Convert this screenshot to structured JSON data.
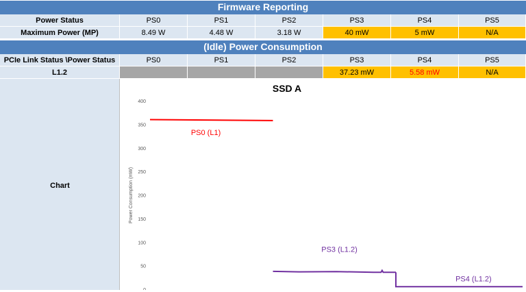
{
  "firmware": {
    "title": "Firmware Reporting",
    "header": [
      "Power Status",
      "PS0",
      "PS1",
      "PS2",
      "PS3",
      "PS4",
      "PS5"
    ],
    "row": [
      "Maximum Power (MP)",
      "8.49 W",
      "4.48 W",
      "3.18 W",
      "40 mW",
      "5 mW",
      "N/A"
    ]
  },
  "idle": {
    "title": "(Idle) Power Consumption",
    "header": [
      "PCIe Link Status \\Power Status",
      "PS0",
      "PS1",
      "PS2",
      "PS3",
      "PS4",
      "PS5"
    ],
    "row": [
      "L1.2",
      "",
      "",
      "",
      "37.23 mW",
      "5.58 mW",
      "N/A"
    ]
  },
  "chart_label": "Chart",
  "colors": {
    "header_blue": "#4f81bd",
    "cell_light": "#dce6f1",
    "highlight_orange": "#ffc000",
    "grey_fill": "#a6a6a6",
    "red": "#ff0000",
    "purple": "#7030a0"
  },
  "chart_data": {
    "type": "line",
    "title": "SSD A",
    "xlabel": "",
    "ylabel": "Power Consumption (mW)",
    "ylim": [
      0,
      400
    ],
    "yticks": [
      0,
      50,
      100,
      150,
      200,
      250,
      300,
      350,
      400
    ],
    "xlim": [
      0,
      100
    ],
    "series": [
      {
        "name": "PS0 (L1)",
        "color": "#ff0000",
        "x": [
          0,
          33
        ],
        "y": [
          360,
          358
        ]
      },
      {
        "name": "PS3 (L1.2)",
        "color": "#7030a0",
        "x": [
          33,
          40,
          50,
          60,
          62,
          62.3,
          62.6,
          66
        ],
        "y": [
          38,
          37,
          37.5,
          36,
          36,
          40,
          36,
          36
        ]
      },
      {
        "name": "PS4 (L1.2)",
        "color": "#7030a0",
        "x": [
          66,
          66,
          100
        ],
        "y": [
          36,
          5.5,
          5.5
        ]
      }
    ],
    "annotations": [
      {
        "text": "PS0 (L1)",
        "x": 11,
        "y": 327,
        "color": "#ff0000"
      },
      {
        "text": "PS3 (L1.2)",
        "x": 46,
        "y": 79,
        "color": "#7030a0"
      },
      {
        "text": "PS4 (L1.2)",
        "x": 82,
        "y": 17,
        "color": "#7030a0"
      }
    ]
  }
}
